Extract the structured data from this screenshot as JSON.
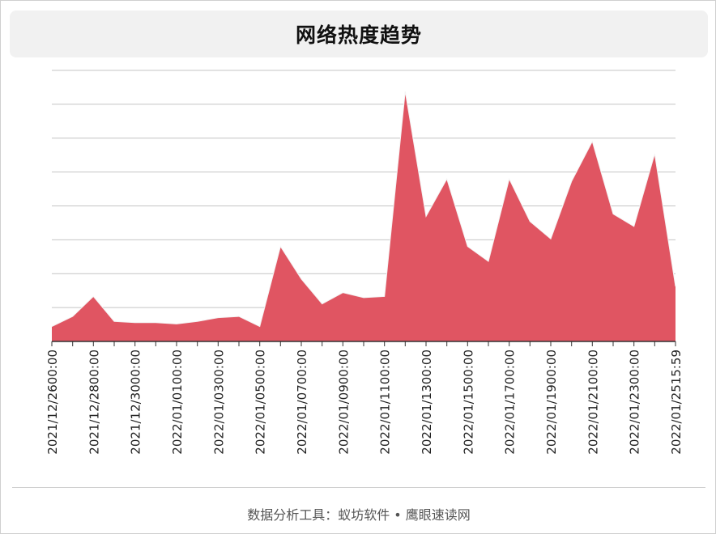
{
  "header": {
    "title": "网络热度趋势"
  },
  "footer": {
    "text": "数据分析工具：蚁坊软件 • 鹰眼速读网"
  },
  "colors": {
    "area": "#e05562",
    "grid": "#c4c4c4",
    "axis": "#333333"
  },
  "chart_data": {
    "type": "area",
    "title": "网络热度趋势",
    "xlabel": "",
    "ylabel": "",
    "grid": true,
    "legend": "none",
    "ylim": [
      0,
      100
    ],
    "tick_labels": [
      "2021/12/2600:00",
      "2021/12/2800:00",
      "2021/12/3000:00",
      "2022/01/0100:00",
      "2022/01/0300:00",
      "2022/01/0500:00",
      "2022/01/0700:00",
      "2022/01/0900:00",
      "2022/01/1100:00",
      "2022/01/1300:00",
      "2022/01/1500:00",
      "2022/01/1700:00",
      "2022/01/1900:00",
      "2022/01/2100:00",
      "2022/01/2300:00",
      "2022/01/2515:59"
    ],
    "series": [
      {
        "values": [
          6,
          10,
          18,
          8,
          7.5,
          7.5,
          7,
          8,
          9.5,
          10,
          6,
          38,
          25,
          15,
          19.5,
          17.5,
          18,
          100,
          50,
          65,
          38,
          32,
          65,
          48,
          41,
          64,
          80,
          51,
          46,
          75,
          22
        ]
      }
    ]
  }
}
